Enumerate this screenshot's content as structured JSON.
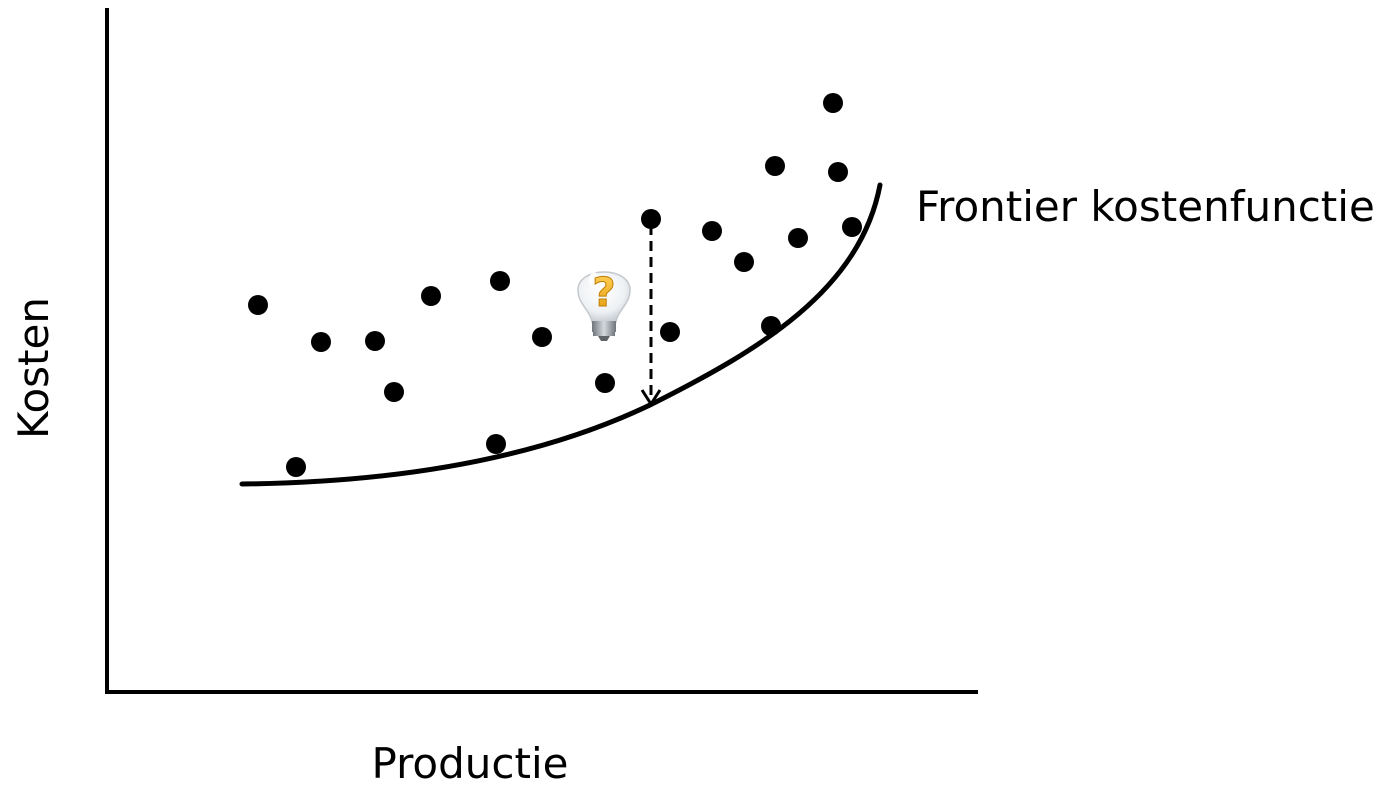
{
  "labels": {
    "x_axis": "Productie",
    "y_axis": "Kosten",
    "frontier": "Frontier kostenfunctie"
  },
  "colors": {
    "ink": "#000000",
    "bulb_glass": "#f2f4f6",
    "question_mark": "#f5b21a",
    "bulb_base": "#9aa0a6"
  },
  "icon": "lightbulb-question-icon"
}
